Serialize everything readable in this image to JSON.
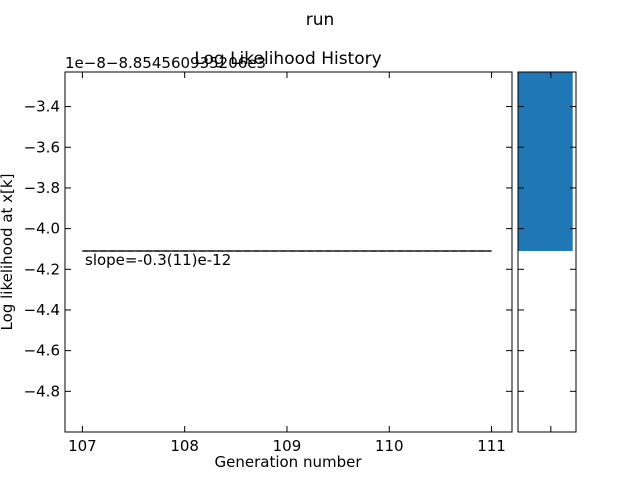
{
  "figure_title": "run",
  "chart_data": [
    {
      "type": "line",
      "title": "Log Likelihood History",
      "xlabel": "Generation number",
      "ylabel": "Log likelihood at x[k]",
      "offset_text": "1e−8−8.854560935206e3",
      "xlim": [
        106.83,
        111.2
      ],
      "ylim": [
        -5.0,
        -3.23
      ],
      "x_ticks": [
        107,
        108,
        109,
        110,
        111
      ],
      "x_tick_labels": [
        "107",
        "108",
        "109",
        "110",
        "111"
      ],
      "y_ticks": [
        -3.4,
        -3.6,
        -3.8,
        -4.0,
        -4.2,
        -4.4,
        -4.6,
        -4.8
      ],
      "y_tick_labels": [
        "−3.4",
        "−3.6",
        "−3.8",
        "−4.0",
        "−4.2",
        "−4.4",
        "−4.6",
        "−4.8"
      ],
      "grid": false,
      "series": [
        {
          "x": [
            107,
            111
          ],
          "y": [
            -4.11,
            -4.11
          ],
          "color": "#000000",
          "style": "solid"
        },
        {
          "x": [
            107,
            111
          ],
          "y": [
            -4.11,
            -4.11
          ],
          "color": "#000000",
          "style": "dashed"
        }
      ],
      "annotation": "slope=-0.3(11)e-12"
    },
    {
      "type": "bar",
      "orientation": "horizontal",
      "ylim": [
        -5.0,
        -3.23
      ],
      "bar_bottom": -4.11,
      "bar_top": -3.23,
      "bar_value": 1,
      "xlim": [
        0,
        1.06
      ],
      "x_ticks": [
        0.6
      ],
      "color": "#1f77b4"
    }
  ]
}
